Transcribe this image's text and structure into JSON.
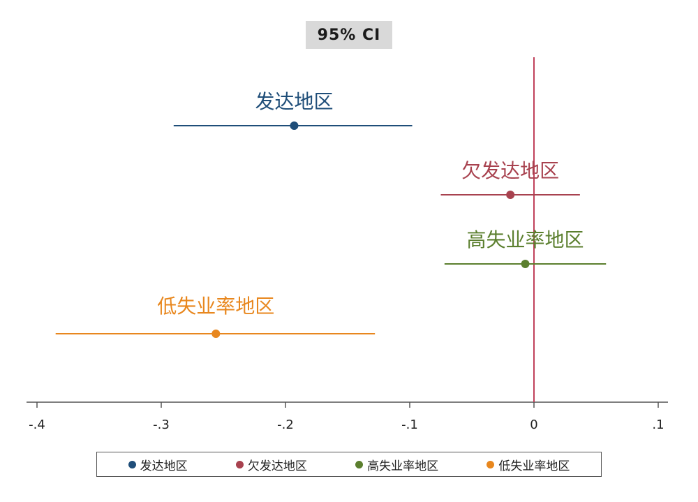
{
  "chart_data": {
    "type": "coefficient-plot",
    "title": "95% CI",
    "xlim": [
      -0.41,
      0.11
    ],
    "x_ticks": [
      -0.4,
      -0.3,
      -0.2,
      -0.1,
      0,
      0.1
    ],
    "x_tick_labels": [
      "-.4",
      "-.3",
      "-.2",
      "-.1",
      "0",
      ".1"
    ],
    "reference_line": {
      "x": 0,
      "color": "#c0405a"
    },
    "grid": false,
    "legend_position": "bottom",
    "series": [
      {
        "name": "发达地区",
        "estimate": -0.193,
        "ci_low": -0.29,
        "ci_high": -0.098,
        "color": "#1f4e79"
      },
      {
        "name": "欠发达地区",
        "estimate": -0.019,
        "ci_low": -0.075,
        "ci_high": 0.037,
        "color": "#a8424f"
      },
      {
        "name": "高失业率地区",
        "estimate": -0.007,
        "ci_low": -0.072,
        "ci_high": 0.058,
        "color": "#5b7f2e"
      },
      {
        "name": "低失业率地区",
        "estimate": -0.256,
        "ci_low": -0.385,
        "ci_high": -0.128,
        "color": "#e8871e"
      }
    ]
  }
}
